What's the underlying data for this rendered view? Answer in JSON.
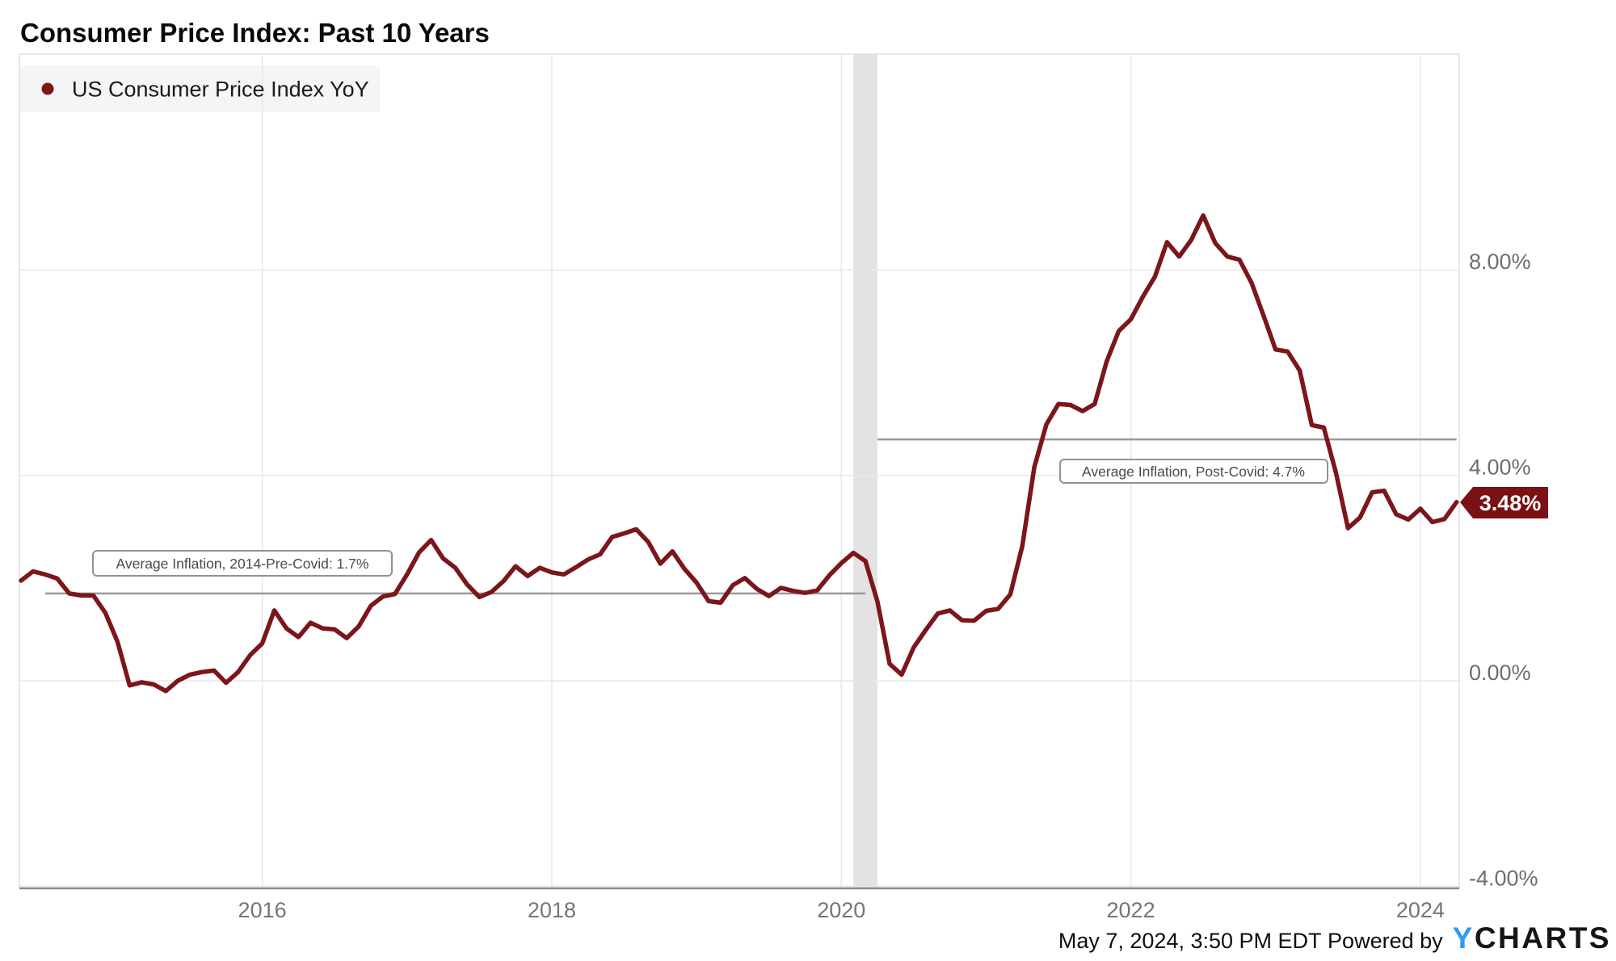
{
  "chart_data": {
    "type": "line",
    "title": "Consumer Price Index: Past 10 Years",
    "grid": true,
    "legend_position": "top-left",
    "series": [
      {
        "name": "US Consumer Price Index YoY",
        "unit": "percent",
        "frequency": "monthly",
        "start": "2014-04",
        "end": "2024-03",
        "values": [
          1.95,
          2.13,
          2.07,
          1.99,
          1.7,
          1.66,
          1.66,
          1.32,
          0.76,
          -0.09,
          -0.03,
          -0.07,
          -0.2,
          0.0,
          0.12,
          0.17,
          0.2,
          -0.04,
          0.17,
          0.5,
          0.73,
          1.37,
          1.02,
          0.85,
          1.13,
          1.02,
          1.0,
          0.83,
          1.06,
          1.46,
          1.64,
          1.69,
          2.07,
          2.5,
          2.74,
          2.38,
          2.2,
          1.87,
          1.63,
          1.73,
          1.94,
          2.23,
          2.04,
          2.2,
          2.11,
          2.07,
          2.21,
          2.36,
          2.46,
          2.8,
          2.87,
          2.95,
          2.7,
          2.28,
          2.52,
          2.18,
          1.91,
          1.55,
          1.52,
          1.86,
          2.0,
          1.79,
          1.65,
          1.81,
          1.75,
          1.71,
          1.76,
          2.05,
          2.29,
          2.49,
          2.33,
          1.54,
          0.33,
          0.12,
          0.65,
          0.99,
          1.31,
          1.37,
          1.18,
          1.17,
          1.36,
          1.4,
          1.68,
          2.62,
          4.16,
          4.99,
          5.39,
          5.37,
          5.25,
          5.39,
          6.22,
          6.81,
          7.04,
          7.48,
          7.87,
          8.54,
          8.26,
          8.58,
          9.06,
          8.52,
          8.26,
          8.2,
          7.75,
          7.11,
          6.45,
          6.41,
          6.04,
          4.98,
          4.93,
          4.05,
          2.97,
          3.18,
          3.67,
          3.7,
          3.24,
          3.14,
          3.35,
          3.09,
          3.15,
          3.48
        ]
      }
    ],
    "x": {
      "tick_years": [
        "2016",
        "2018",
        "2020",
        "2022",
        "2024"
      ]
    },
    "y": {
      "tick_labels": [
        "8.00%",
        "4.00%",
        "0.00%",
        "-4.00%"
      ],
      "tick_values": [
        8,
        4,
        0,
        -4
      ],
      "range_approx": [
        -4.2,
        12.2
      ]
    },
    "last_point": {
      "label": "3.48%",
      "value": 3.48,
      "month": "2024-03"
    },
    "average_lines": [
      {
        "label": "Average Inflation, 2014-Pre-Covid: 1.7%",
        "value": 1.7,
        "from": "2014-06",
        "to": "2020-02"
      },
      {
        "label": "Average Inflation, Post-Covid: 4.7%",
        "value": 4.7,
        "from": "2020-03",
        "to": "2024-03"
      }
    ],
    "recession_band": {
      "from": "2020-01",
      "to": "2020-03"
    }
  },
  "footer": {
    "timestamp": "May 7, 2024, 3:50 PM EDT",
    "powered_by": "Powered by",
    "brand": {
      "y": "Y",
      "rest": "CHARTS"
    }
  },
  "colors": {
    "series": "#7B161A",
    "badge": "#7A1115",
    "legend_box": "#F5F5F5",
    "band": "#E3E3E3",
    "gridline": "#E8E8E8",
    "plot_border": "#E0E0E0",
    "axis": "#8C8C8C",
    "average_line": "#9A9A9A",
    "brand_blue": "#2E9BF0"
  }
}
